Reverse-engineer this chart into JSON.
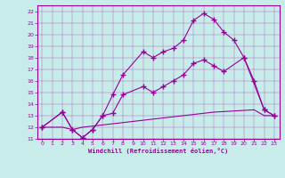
{
  "line1_x": [
    0,
    2,
    3,
    4,
    5,
    6,
    7,
    8,
    10,
    11,
    12,
    13,
    14,
    15,
    16,
    17,
    18,
    19,
    20,
    22,
    23
  ],
  "line1_y": [
    12,
    13.3,
    11.8,
    11.1,
    11.8,
    13.0,
    14.8,
    16.5,
    18.5,
    18.0,
    18.5,
    18.8,
    19.5,
    21.2,
    21.8,
    21.3,
    20.2,
    19.5,
    18.0,
    13.5,
    13.0
  ],
  "line2_x": [
    0,
    2,
    3,
    4,
    5,
    6,
    7,
    8,
    10,
    11,
    12,
    13,
    14,
    15,
    16,
    17,
    18,
    20,
    21,
    22,
    23
  ],
  "line2_y": [
    12,
    13.3,
    11.8,
    11.1,
    11.8,
    13.0,
    13.2,
    14.8,
    15.5,
    15.0,
    15.5,
    16.0,
    16.5,
    17.5,
    17.8,
    17.3,
    16.8,
    18.0,
    16.0,
    13.5,
    13.0
  ],
  "line3_x": [
    0,
    2,
    3,
    4,
    5,
    6,
    7,
    8,
    9,
    10,
    11,
    12,
    13,
    14,
    15,
    16,
    17,
    18,
    19,
    20,
    21,
    22,
    23
  ],
  "line3_y": [
    12,
    12.0,
    11.8,
    12.0,
    12.1,
    12.2,
    12.3,
    12.4,
    12.5,
    12.6,
    12.7,
    12.8,
    12.9,
    13.0,
    13.1,
    13.2,
    13.3,
    13.35,
    13.4,
    13.45,
    13.5,
    13.0,
    13.0
  ],
  "color": "#990099",
  "bg_color": "#c8ecea",
  "xlabel": "Windchill (Refroidissement éolien,°C)",
  "ylim": [
    11,
    22.5
  ],
  "xlim": [
    -0.5,
    23.5
  ],
  "yticks": [
    11,
    12,
    13,
    14,
    15,
    16,
    17,
    18,
    19,
    20,
    21,
    22
  ],
  "xticks": [
    0,
    1,
    2,
    3,
    4,
    5,
    6,
    7,
    8,
    9,
    10,
    11,
    12,
    13,
    14,
    15,
    16,
    17,
    18,
    19,
    20,
    21,
    22,
    23
  ]
}
